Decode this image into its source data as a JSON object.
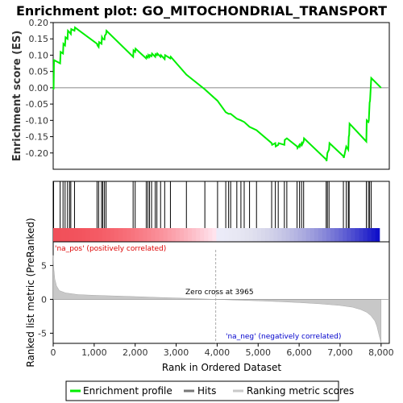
{
  "chart_data": {
    "type": "line",
    "title": "Enrichment plot: GO_MITOCHONDRIAL_TRANSPORT",
    "es_ylabel": "Enrichment score (ES)",
    "rank_ylabel": "Ranked list metric (PreRanked)",
    "xlabel": "Rank in Ordered Dataset",
    "xlim": [
      0,
      8200
    ],
    "es_ylim": [
      -0.25,
      0.2
    ],
    "es_yticks": [
      "0.20",
      "0.15",
      "0.10",
      "0.05",
      "0.00",
      "-0.05",
      "-0.10",
      "-0.15",
      "-0.20"
    ],
    "rank_ylim": [
      -6.5,
      8.5
    ],
    "rank_yticks": [
      "5",
      "0",
      "-5"
    ],
    "xticks": [
      "0",
      "1,000",
      "2,000",
      "3,000",
      "4,000",
      "5,000",
      "6,000",
      "7,000",
      "8,000"
    ],
    "zero_cross_label": "Zero cross at 3965",
    "zero_cross": 3965,
    "pos_label": "'na_pos' (positively correlated)",
    "neg_label": "'na_neg' (negatively correlated)",
    "legend": [
      "Enrichment profile",
      "Hits",
      "Ranking metric scores"
    ],
    "colors": {
      "profile": "#00ee00",
      "hits": "#000000",
      "metric": "#c8c8c8",
      "pos_text": "#dd0000",
      "neg_text": "#0000cc"
    },
    "hits": [
      10,
      170,
      240,
      290,
      350,
      400,
      430,
      520,
      1070,
      1110,
      1180,
      1210,
      1250,
      1290,
      1950,
      2000,
      2270,
      2310,
      2350,
      2400,
      2490,
      2530,
      2620,
      2720,
      2860,
      3250,
      3700,
      4010,
      4210,
      4280,
      4330,
      4480,
      4580,
      4660,
      4790,
      4960,
      5330,
      5420,
      5490,
      5640,
      5700,
      5950,
      6010,
      6060,
      6110,
      6660,
      6690,
      6730,
      7080,
      7150,
      7200,
      7220,
      7640,
      7690,
      7720,
      7760
    ],
    "es_profile": [
      [
        0,
        0.0
      ],
      [
        10,
        -0.005
      ],
      [
        20,
        0.085
      ],
      [
        170,
        0.075
      ],
      [
        180,
        0.11
      ],
      [
        240,
        0.105
      ],
      [
        250,
        0.135
      ],
      [
        290,
        0.13
      ],
      [
        300,
        0.155
      ],
      [
        350,
        0.15
      ],
      [
        360,
        0.175
      ],
      [
        400,
        0.17
      ],
      [
        430,
        0.165
      ],
      [
        440,
        0.18
      ],
      [
        520,
        0.175
      ],
      [
        530,
        0.185
      ],
      [
        1070,
        0.135
      ],
      [
        1080,
        0.13
      ],
      [
        1110,
        0.125
      ],
      [
        1120,
        0.14
      ],
      [
        1180,
        0.135
      ],
      [
        1190,
        0.155
      ],
      [
        1210,
        0.15
      ],
      [
        1250,
        0.148
      ],
      [
        1260,
        0.16
      ],
      [
        1290,
        0.165
      ],
      [
        1300,
        0.175
      ],
      [
        1950,
        0.095
      ],
      [
        1960,
        0.115
      ],
      [
        2000,
        0.11
      ],
      [
        2010,
        0.12
      ],
      [
        2270,
        0.09
      ],
      [
        2280,
        0.097
      ],
      [
        2310,
        0.093
      ],
      [
        2320,
        0.1
      ],
      [
        2350,
        0.095
      ],
      [
        2360,
        0.1
      ],
      [
        2400,
        0.097
      ],
      [
        2410,
        0.105
      ],
      [
        2490,
        0.095
      ],
      [
        2500,
        0.103
      ],
      [
        2530,
        0.1
      ],
      [
        2540,
        0.105
      ],
      [
        2620,
        0.095
      ],
      [
        2630,
        0.1
      ],
      [
        2720,
        0.088
      ],
      [
        2730,
        0.1
      ],
      [
        2860,
        0.09
      ],
      [
        2870,
        0.095
      ],
      [
        3250,
        0.04
      ],
      [
        3700,
        -0.005
      ],
      [
        4010,
        -0.04
      ],
      [
        4210,
        -0.075
      ],
      [
        4280,
        -0.08
      ],
      [
        4330,
        -0.08
      ],
      [
        4480,
        -0.095
      ],
      [
        4580,
        -0.1
      ],
      [
        4660,
        -0.105
      ],
      [
        4790,
        -0.12
      ],
      [
        4960,
        -0.13
      ],
      [
        5330,
        -0.17
      ],
      [
        5340,
        -0.175
      ],
      [
        5420,
        -0.17
      ],
      [
        5430,
        -0.18
      ],
      [
        5490,
        -0.175
      ],
      [
        5500,
        -0.17
      ],
      [
        5640,
        -0.175
      ],
      [
        5650,
        -0.16
      ],
      [
        5700,
        -0.155
      ],
      [
        5950,
        -0.18
      ],
      [
        5960,
        -0.185
      ],
      [
        6010,
        -0.175
      ],
      [
        6020,
        -0.18
      ],
      [
        6060,
        -0.17
      ],
      [
        6070,
        -0.175
      ],
      [
        6110,
        -0.165
      ],
      [
        6120,
        -0.155
      ],
      [
        6660,
        -0.22
      ],
      [
        6670,
        -0.225
      ],
      [
        6690,
        -0.2
      ],
      [
        6730,
        -0.19
      ],
      [
        6740,
        -0.17
      ],
      [
        7080,
        -0.21
      ],
      [
        7090,
        -0.215
      ],
      [
        7150,
        -0.18
      ],
      [
        7200,
        -0.19
      ],
      [
        7210,
        -0.15
      ],
      [
        7220,
        -0.145
      ],
      [
        7230,
        -0.11
      ],
      [
        7640,
        -0.165
      ],
      [
        7650,
        -0.1
      ],
      [
        7690,
        -0.105
      ],
      [
        7700,
        -0.1
      ],
      [
        7720,
        -0.045
      ],
      [
        7730,
        -0.04
      ],
      [
        7760,
        0.03
      ],
      [
        8000,
        0.0
      ]
    ],
    "metric_curve": [
      [
        0,
        6.5
      ],
      [
        15,
        4.5
      ],
      [
        40,
        3.0
      ],
      [
        80,
        2.0
      ],
      [
        150,
        1.3
      ],
      [
        300,
        0.95
      ],
      [
        600,
        0.7
      ],
      [
        1000,
        0.6
      ],
      [
        1500,
        0.5
      ],
      [
        2000,
        0.4
      ],
      [
        2500,
        0.3
      ],
      [
        3000,
        0.2
      ],
      [
        3500,
        0.1
      ],
      [
        3965,
        0.0
      ],
      [
        4500,
        -0.12
      ],
      [
        5000,
        -0.22
      ],
      [
        5500,
        -0.33
      ],
      [
        6000,
        -0.48
      ],
      [
        6500,
        -0.65
      ],
      [
        7000,
        -0.9
      ],
      [
        7300,
        -1.15
      ],
      [
        7500,
        -1.5
      ],
      [
        7650,
        -1.9
      ],
      [
        7750,
        -2.4
      ],
      [
        7850,
        -3.2
      ],
      [
        7900,
        -4.0
      ],
      [
        7950,
        -5.3
      ],
      [
        8000,
        -6.4
      ]
    ]
  }
}
